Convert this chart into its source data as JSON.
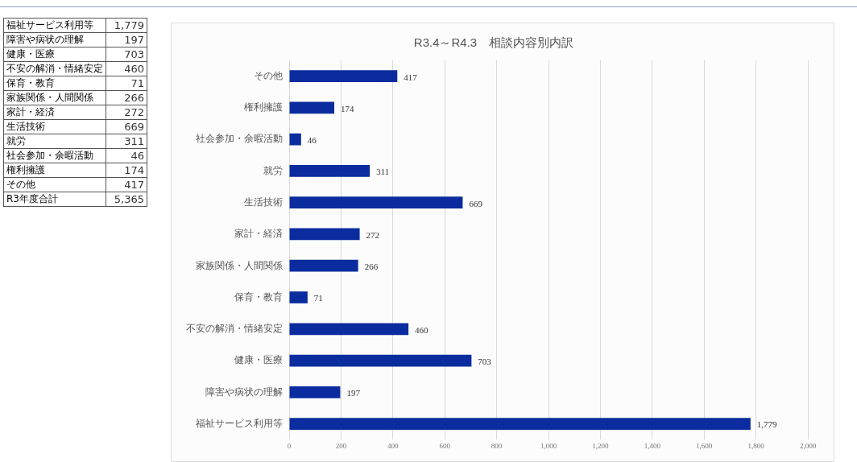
{
  "chart_data": {
    "type": "bar",
    "orientation": "horizontal",
    "title": "R3.4～R4.3　相談内容別内訳",
    "categories": [
      "その他",
      "権利擁護",
      "社会参加・余暇活動",
      "就労",
      "生活技術",
      "家計・経済",
      "家族関係・人間関係",
      "保育・教育",
      "不安の解消・情緒安定",
      "健康・医療",
      "障害や病状の理解",
      "福祉サービス利用等"
    ],
    "values": [
      417,
      174,
      46,
      311,
      669,
      272,
      266,
      71,
      460,
      703,
      197,
      1779
    ],
    "value_labels": [
      "417",
      "174",
      "46",
      "311",
      "669",
      "272",
      "266",
      "71",
      "460",
      "703",
      "197",
      "1,779"
    ],
    "color": "#0a2c9e",
    "xlim": [
      0,
      2000
    ],
    "xticks": [
      0,
      200,
      400,
      600,
      800,
      {
        "value": 1000,
        "label": "1,000"
      },
      {
        "value": 1200,
        "label": "1,200"
      },
      {
        "value": 1400,
        "label": "1,400"
      },
      {
        "value": 1600,
        "label": "1,600"
      },
      {
        "value": 1800,
        "label": "1,800"
      },
      {
        "value": 2000,
        "label": "2,000"
      }
    ],
    "grid": "x",
    "legend": false,
    "annotations": [
      "R3年度合計",
      "5,365"
    ]
  }
}
